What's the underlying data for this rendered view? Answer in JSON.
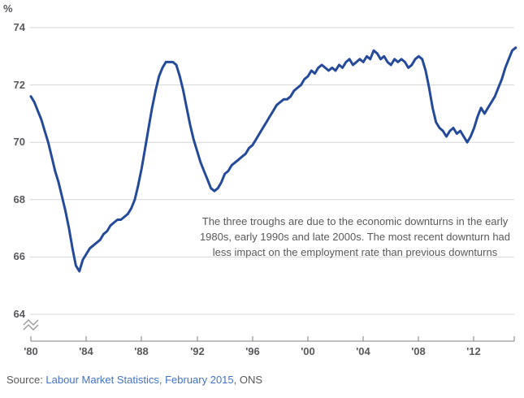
{
  "chart": {
    "unit_label": "%",
    "y_ticks": [
      "74",
      "72",
      "70",
      "68",
      "66",
      "64"
    ],
    "x_ticks": [
      "'80",
      "'84",
      "'88",
      "'92",
      "'96",
      "'00",
      "'04",
      "'08",
      "'12"
    ],
    "annotation_lines": [
      "The three troughs are due to the economic downturns in the early",
      "1980s, early 1990s and late 2000s. The most recent downturn had",
      "less impact on the employment rate than previous downturns"
    ]
  },
  "source": {
    "prefix": "Source: ",
    "link_text": "Labour Market Statistics, February 2015",
    "suffix": ", ONS"
  },
  "colors": {
    "line": "#264a9a",
    "gridline": "#d6d6d6",
    "axis": "#7f7f7f",
    "tick_text": "#58595b",
    "annotation_text": "#595959",
    "link": "#4472c4"
  },
  "chart_data": {
    "type": "line",
    "title": "",
    "xlabel": "",
    "ylabel": "%",
    "ylim": [
      64,
      74
    ],
    "y_axis_break": true,
    "grid": "horizontal",
    "legend": "none",
    "y_tick_values": [
      74,
      72,
      70,
      68,
      66,
      64
    ],
    "x_tick_years": [
      1980,
      1984,
      1988,
      1992,
      1996,
      2000,
      2004,
      2008,
      2012
    ],
    "x_start_year": 1980,
    "x_step_years": 0.25,
    "series": [
      {
        "name": "employment rate",
        "values": [
          71.6,
          71.4,
          71.1,
          70.8,
          70.4,
          70.0,
          69.5,
          69.0,
          68.6,
          68.1,
          67.6,
          67.0,
          66.3,
          65.7,
          65.5,
          65.9,
          66.1,
          66.3,
          66.4,
          66.5,
          66.6,
          66.8,
          66.9,
          67.1,
          67.2,
          67.3,
          67.3,
          67.4,
          67.5,
          67.7,
          68.0,
          68.5,
          69.1,
          69.8,
          70.5,
          71.2,
          71.8,
          72.3,
          72.6,
          72.8,
          72.8,
          72.8,
          72.7,
          72.3,
          71.8,
          71.2,
          70.6,
          70.1,
          69.7,
          69.3,
          69.0,
          68.7,
          68.4,
          68.3,
          68.4,
          68.6,
          68.9,
          69.0,
          69.2,
          69.3,
          69.4,
          69.5,
          69.6,
          69.8,
          69.9,
          70.1,
          70.3,
          70.5,
          70.7,
          70.9,
          71.1,
          71.3,
          71.4,
          71.5,
          71.5,
          71.6,
          71.8,
          71.9,
          72.0,
          72.2,
          72.3,
          72.5,
          72.4,
          72.6,
          72.7,
          72.6,
          72.5,
          72.6,
          72.5,
          72.7,
          72.6,
          72.8,
          72.9,
          72.7,
          72.8,
          72.9,
          72.8,
          73.0,
          72.9,
          73.2,
          73.1,
          72.9,
          73.0,
          72.8,
          72.7,
          72.9,
          72.8,
          72.9,
          72.8,
          72.6,
          72.7,
          72.9,
          73.0,
          72.9,
          72.5,
          71.9,
          71.2,
          70.7,
          70.5,
          70.4,
          70.2,
          70.4,
          70.5,
          70.3,
          70.4,
          70.2,
          70.0,
          70.2,
          70.5,
          70.9,
          71.2,
          71.0,
          71.2,
          71.4,
          71.6,
          71.9,
          72.2,
          72.6,
          72.9,
          73.2,
          73.3
        ]
      }
    ]
  }
}
